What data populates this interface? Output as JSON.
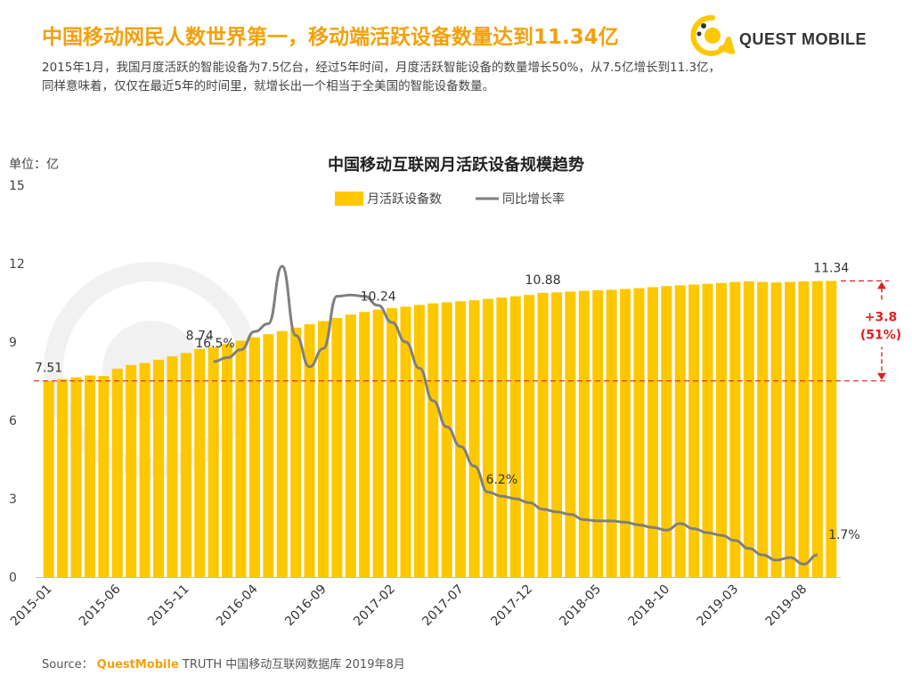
{
  "header": {
    "headline": "中国移动网民人数世界第一，移动端活跃设备数量达到11.34亿",
    "logo_text": "QUEST MOBILE",
    "summary_lines": [
      "2015年1月，我国月度活跃的智能设备为7.5亿台，经过5年时间，月度活跃智能设备的数量增长50%，从7.5亿增长到11.3亿，",
      "同样意味着，仅仅在最近5年的时间里，就增长出一个相当于全美国的智能设备数量。"
    ]
  },
  "colors": {
    "accent": "#f2a10b",
    "bar": "#fdc800",
    "line": "#7f7f7f",
    "annotation": "#e02020"
  },
  "chart_data": {
    "type": "bar",
    "title": "中国移动互联网月活跃设备规模趋势",
    "unit_label": "单位：亿",
    "legend": [
      "月活跃设备数",
      "同比增长率"
    ],
    "ylim": [
      0,
      15
    ],
    "yticks": [
      "0",
      "3",
      "6",
      "9",
      "12",
      "15"
    ],
    "x_tick_labels": [
      "2015-01",
      "2015-06",
      "2015-11",
      "2016-04",
      "2016-09",
      "2017-02",
      "2017-07",
      "2017-12",
      "2018-05",
      "2018-10",
      "2019-03",
      "2019-08"
    ],
    "series": [
      {
        "name": "月活跃设备数",
        "type": "bar",
        "values": [
          7.51,
          7.58,
          7.65,
          7.72,
          7.7,
          7.98,
          8.12,
          8.2,
          8.32,
          8.45,
          8.58,
          8.74,
          8.8,
          8.92,
          9.05,
          9.18,
          9.3,
          9.42,
          9.55,
          9.68,
          9.8,
          9.92,
          10.05,
          10.15,
          10.24,
          10.3,
          10.35,
          10.42,
          10.48,
          10.52,
          10.56,
          10.6,
          10.65,
          10.7,
          10.75,
          10.8,
          10.88,
          10.9,
          10.93,
          10.96,
          10.98,
          11.0,
          11.03,
          11.06,
          11.1,
          11.14,
          11.17,
          11.2,
          11.23,
          11.26,
          11.3,
          11.32,
          11.3,
          11.28,
          11.3,
          11.32,
          11.33,
          11.34
        ]
      },
      {
        "name": "同比增长率",
        "type": "line",
        "start_index": 12,
        "ylim": [
          0,
          30
        ],
        "values": [
          16.5,
          16.8,
          17.4,
          18.8,
          19.4,
          23.8,
          18.5,
          16.1,
          17.5,
          21.5,
          21.6,
          21.5,
          20.8,
          19.5,
          18.0,
          16.0,
          13.5,
          11.5,
          10.0,
          8.5,
          6.5,
          6.2,
          6.0,
          5.7,
          5.2,
          5.0,
          4.8,
          4.4,
          4.3,
          4.3,
          4.2,
          4.0,
          3.8,
          3.6,
          4.1,
          3.7,
          3.4,
          3.2,
          2.8,
          2.2,
          1.7,
          1.3,
          1.5,
          1.0,
          1.7
        ],
        "comment": "line values approximated from the figure; final labelled point shows 1.7%"
      }
    ],
    "bar_labels": [
      {
        "index": 0,
        "text": "7.51"
      },
      {
        "index": 11,
        "text": "8.74"
      },
      {
        "index": 24,
        "text": "10.24"
      },
      {
        "index": 36,
        "text": "10.88"
      },
      {
        "index": 57,
        "text": "11.34"
      }
    ],
    "line_labels": [
      {
        "index": 0,
        "text": "16.5%"
      },
      {
        "index": 21,
        "text": "6.2%"
      },
      {
        "index": 44,
        "text": "1.7%"
      }
    ],
    "reference_line": {
      "value": 7.51
    },
    "growth_annotation": {
      "delta": "+3.8",
      "percent": "(51%)"
    }
  },
  "footer": {
    "source_label": "Source：",
    "brand": "QuestMobile",
    "source_text": "TRUTH 中国移动互联网数据库 2019年8月"
  }
}
